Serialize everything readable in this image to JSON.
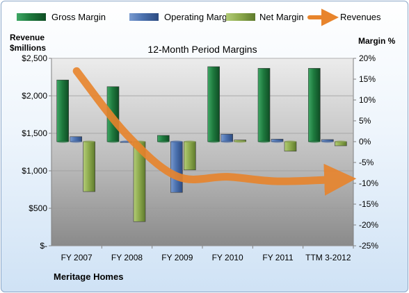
{
  "chart_data": {
    "type": "bar",
    "title": "12-Month Period Margins",
    "company": "Meritage Homes",
    "left_axis_title": [
      "Revenue",
      "$millions"
    ],
    "right_axis_title": "Margin %",
    "categories": [
      "FY 2007",
      "FY 2008",
      "FY 2009",
      "FY 2010",
      "FY 2011",
      "TTM 3-2012"
    ],
    "left_ticks": [
      "$-",
      "$500",
      "$1,000",
      "$1,500",
      "$2,000",
      "$2,500"
    ],
    "right_ticks": [
      "-25%",
      "-20%",
      "-15%",
      "-10%",
      "-5%",
      "0%",
      "5%",
      "10%",
      "15%",
      "20%"
    ],
    "ylim_left": [
      0,
      2500
    ],
    "ylim_right": [
      -25,
      20
    ],
    "legend_position": "top",
    "series": [
      {
        "name": "Gross Margin",
        "axis": "right",
        "kind": "bar",
        "color": "#1e7a3e",
        "values": [
          14.8,
          13.2,
          1.5,
          18.0,
          17.6,
          17.6
        ]
      },
      {
        "name": "Operating Margin",
        "axis": "right",
        "kind": "bar",
        "color": "#4c72b0",
        "values": [
          1.2,
          -0.2,
          -12.2,
          1.8,
          0.6,
          0.5
        ]
      },
      {
        "name": "Net Margin",
        "axis": "right",
        "kind": "bar",
        "color": "#8fac4f",
        "values": [
          -12.0,
          -19.2,
          -6.8,
          0.4,
          -2.3,
          -1.0
        ]
      },
      {
        "name": "Revenues",
        "axis": "left",
        "kind": "arrow",
        "color": "#e8842c",
        "values": [
          2330,
          1480,
          925,
          920,
          860,
          890
        ]
      }
    ]
  }
}
